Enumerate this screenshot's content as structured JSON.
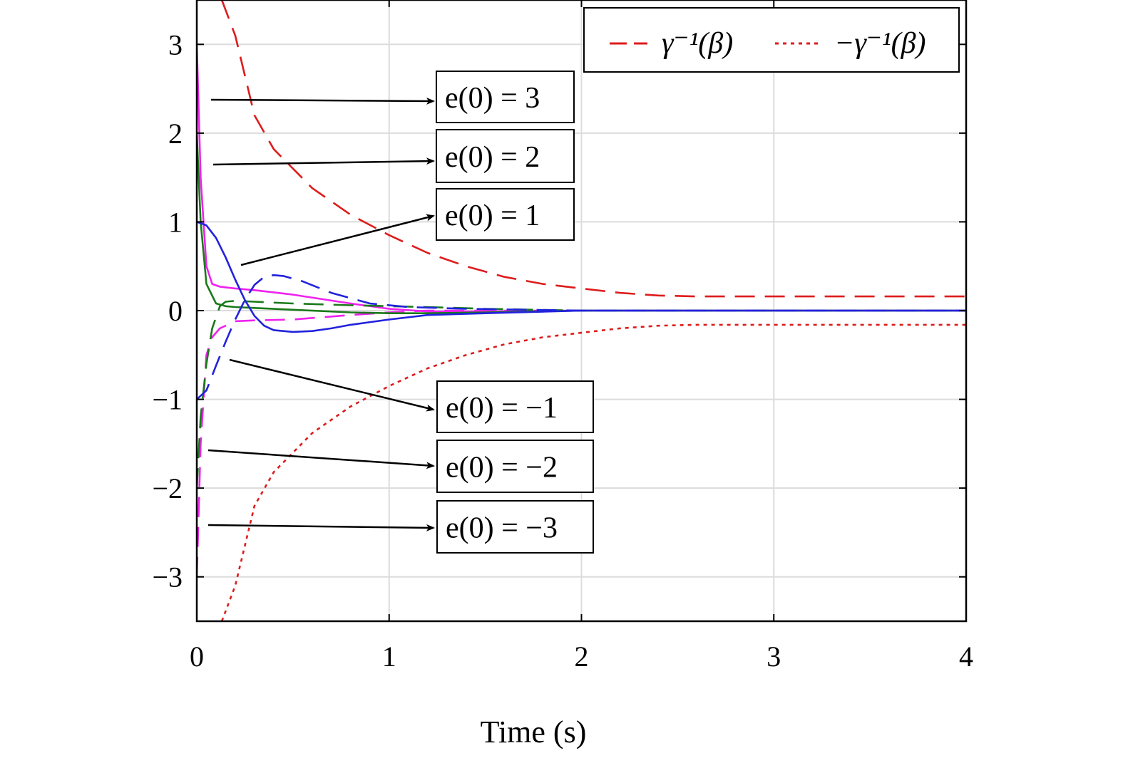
{
  "chart_data": {
    "type": "line",
    "title": "",
    "xlabel": "Time (s)",
    "ylabel": "",
    "xlim": [
      0,
      4
    ],
    "ylim": [
      -3.5,
      3.5
    ],
    "xticks": [
      0,
      1,
      2,
      3,
      4
    ],
    "yticks": [
      -3,
      -2,
      -1,
      0,
      1,
      2,
      3
    ],
    "xtick_labels": [
      "0",
      "1",
      "2",
      "3",
      "4"
    ],
    "ytick_labels": [
      "−3",
      "−2",
      "−1",
      "0",
      "1",
      "2",
      "3"
    ],
    "grid": true,
    "legend_position": "top-right",
    "legend_entries": [
      {
        "label": "γ⁻¹(β)",
        "color": "#dd1c1c",
        "style": "dashed"
      },
      {
        "label": "−γ⁻¹(β)",
        "color": "#dd1c1c",
        "style": "dotted"
      }
    ],
    "series": [
      {
        "color": "#dd1c1c",
        "style": "dashed",
        "x": [
          0.13,
          0.2,
          0.3,
          0.4,
          0.5,
          0.6,
          0.8,
          1.0,
          1.2,
          1.4,
          1.6,
          1.8,
          2.0,
          2.2,
          2.4,
          2.6,
          3.0,
          4.0
        ],
        "y": [
          3.5,
          3.1,
          2.2,
          1.82,
          1.6,
          1.38,
          1.08,
          0.85,
          0.65,
          0.5,
          0.38,
          0.3,
          0.25,
          0.2,
          0.17,
          0.16,
          0.16,
          0.16
        ]
      },
      {
        "color": "#dd1c1c",
        "style": "dotted",
        "x": [
          0.13,
          0.2,
          0.3,
          0.4,
          0.5,
          0.6,
          0.8,
          1.0,
          1.2,
          1.4,
          1.6,
          1.8,
          2.0,
          2.2,
          2.4,
          2.6,
          3.0,
          4.0
        ],
        "y": [
          -3.5,
          -3.1,
          -2.2,
          -1.82,
          -1.6,
          -1.38,
          -1.08,
          -0.85,
          -0.65,
          -0.5,
          -0.38,
          -0.3,
          -0.25,
          -0.2,
          -0.17,
          -0.16,
          -0.16,
          -0.16
        ]
      },
      {
        "color": "#ee22ee",
        "style": "solid",
        "x": [
          0,
          0.02,
          0.05,
          0.08,
          0.12,
          0.2,
          0.3,
          0.5,
          0.8,
          1.0,
          1.2,
          1.5,
          2.0,
          4.0
        ],
        "y": [
          3,
          1.5,
          0.5,
          0.3,
          0.27,
          0.25,
          0.23,
          0.18,
          0.08,
          0.02,
          -0.01,
          -0.01,
          0,
          0
        ]
      },
      {
        "color": "#ee22ee",
        "style": "dashed",
        "x": [
          0,
          0.02,
          0.05,
          0.08,
          0.12,
          0.2,
          0.3,
          0.5,
          0.8,
          1.0,
          1.2,
          1.5,
          2.0,
          4.0
        ],
        "y": [
          -3,
          -1.5,
          -0.5,
          -0.3,
          -0.2,
          -0.12,
          -0.11,
          -0.1,
          -0.05,
          -0.02,
          0,
          0,
          0,
          0
        ]
      },
      {
        "color": "#1a7a1a",
        "style": "solid",
        "x": [
          0,
          0.02,
          0.05,
          0.1,
          0.15,
          0.2,
          0.3,
          0.5,
          0.8,
          1.0,
          1.2,
          1.5,
          2.0,
          4.0
        ],
        "y": [
          2,
          1.0,
          0.3,
          0.08,
          0.05,
          0.04,
          0.03,
          0.01,
          -0.02,
          -0.03,
          -0.03,
          -0.02,
          0,
          0
        ]
      },
      {
        "color": "#1a7a1a",
        "style": "dashed",
        "x": [
          0,
          0.02,
          0.05,
          0.08,
          0.12,
          0.15,
          0.2,
          0.3,
          0.5,
          0.8,
          1.0,
          1.2,
          1.5,
          2.0,
          4.0
        ],
        "y": [
          -2,
          -1.2,
          -0.6,
          -0.2,
          0.05,
          0.1,
          0.11,
          0.1,
          0.08,
          0.06,
          0.05,
          0.04,
          0.02,
          0,
          0
        ]
      },
      {
        "color": "#2222dd",
        "style": "solid",
        "x": [
          0,
          0.05,
          0.1,
          0.15,
          0.2,
          0.25,
          0.3,
          0.35,
          0.4,
          0.5,
          0.6,
          0.7,
          0.8,
          1.0,
          1.2,
          1.5,
          2.0,
          4.0
        ],
        "y": [
          1,
          0.96,
          0.82,
          0.6,
          0.35,
          0.12,
          -0.06,
          -0.17,
          -0.22,
          -0.24,
          -0.23,
          -0.2,
          -0.16,
          -0.1,
          -0.05,
          -0.03,
          0,
          0
        ]
      },
      {
        "color": "#2222dd",
        "style": "dashed",
        "x": [
          0,
          0.05,
          0.1,
          0.15,
          0.2,
          0.25,
          0.3,
          0.35,
          0.4,
          0.45,
          0.55,
          0.7,
          0.9,
          1.1,
          1.4,
          2.0,
          4.0
        ],
        "y": [
          -1,
          -0.9,
          -0.62,
          -0.35,
          -0.1,
          0.12,
          0.29,
          0.38,
          0.4,
          0.39,
          0.33,
          0.2,
          0.08,
          0.04,
          0.02,
          0,
          0
        ]
      }
    ],
    "annotations": [
      {
        "text": "e(0) = 3",
        "value": 3
      },
      {
        "text": "e(0) = 2",
        "value": 2
      },
      {
        "text": "e(0) = 1",
        "value": 1
      },
      {
        "text": "e(0) = −1",
        "value": -1
      },
      {
        "text": "e(0) = −2",
        "value": -2
      },
      {
        "text": "e(0) = −3",
        "value": -3
      }
    ]
  }
}
